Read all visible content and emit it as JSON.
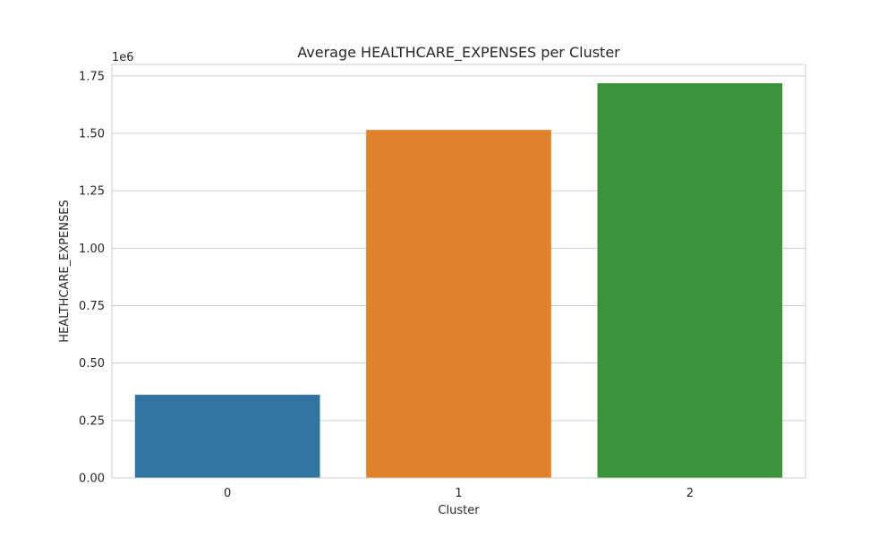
{
  "chart_data": {
    "type": "bar",
    "title": "Average HEALTHCARE_EXPENSES per Cluster",
    "xlabel": "Cluster",
    "ylabel": "HEALTHCARE_EXPENSES",
    "y_offset_label": "1e6",
    "categories": [
      "0",
      "1",
      "2"
    ],
    "values": [
      362000,
      1515000,
      1718000
    ],
    "colors": [
      "#3274a1",
      "#e1812c",
      "#3a923a"
    ],
    "ylim": [
      0,
      1800000
    ],
    "y_ticks": [
      0,
      250000,
      500000,
      750000,
      1000000,
      1250000,
      1500000,
      1750000
    ],
    "y_tick_labels": [
      "0.00",
      "0.25",
      "0.50",
      "0.75",
      "1.00",
      "1.25",
      "1.50",
      "1.75"
    ],
    "grid": "y",
    "legend": "none"
  }
}
